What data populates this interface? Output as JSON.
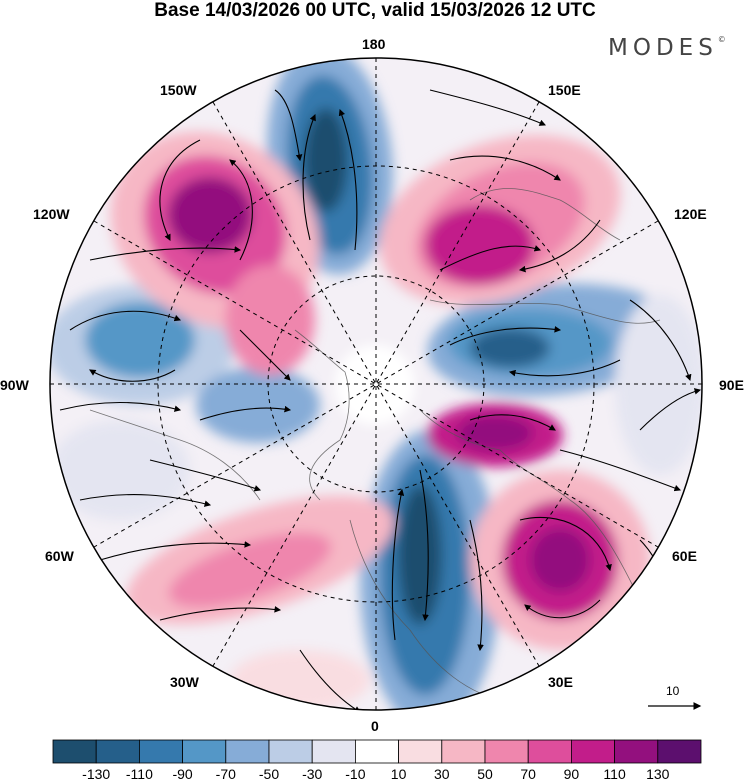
{
  "header": {
    "title": "Base 14/03/2026 00 UTC, valid 15/03/2026 12 UTC",
    "brand": "MODES",
    "brand_mark": "©"
  },
  "map": {
    "projection": "north-polar-stereographic",
    "longitude_labels": {
      "top": "180",
      "bottom": "0",
      "left": "90W",
      "right": "90E",
      "upper_left_1": "150W",
      "upper_left_2": "120W",
      "upper_right_1": "150E",
      "upper_right_2": "120E",
      "lower_left_1": "60W",
      "lower_left_2": "30W",
      "lower_right_1": "60E",
      "lower_right_2": "30E"
    },
    "vector_reference": {
      "label": "10"
    }
  },
  "colorbar": {
    "colors": [
      "#1d4e6e",
      "#255f8a",
      "#3579ad",
      "#5497c7",
      "#86acd7",
      "#bccde6",
      "#e4e5f1",
      "#ffffff",
      "#f9dde1",
      "#f6b7c5",
      "#ef86ad",
      "#de4e9c",
      "#c21d8a",
      "#93107e",
      "#5c0f6e"
    ],
    "tick_labels": [
      "-130",
      "-110",
      "-90",
      "-70",
      "-50",
      "-30",
      "-10",
      "10",
      "30",
      "50",
      "70",
      "90",
      "110",
      "130"
    ]
  }
}
